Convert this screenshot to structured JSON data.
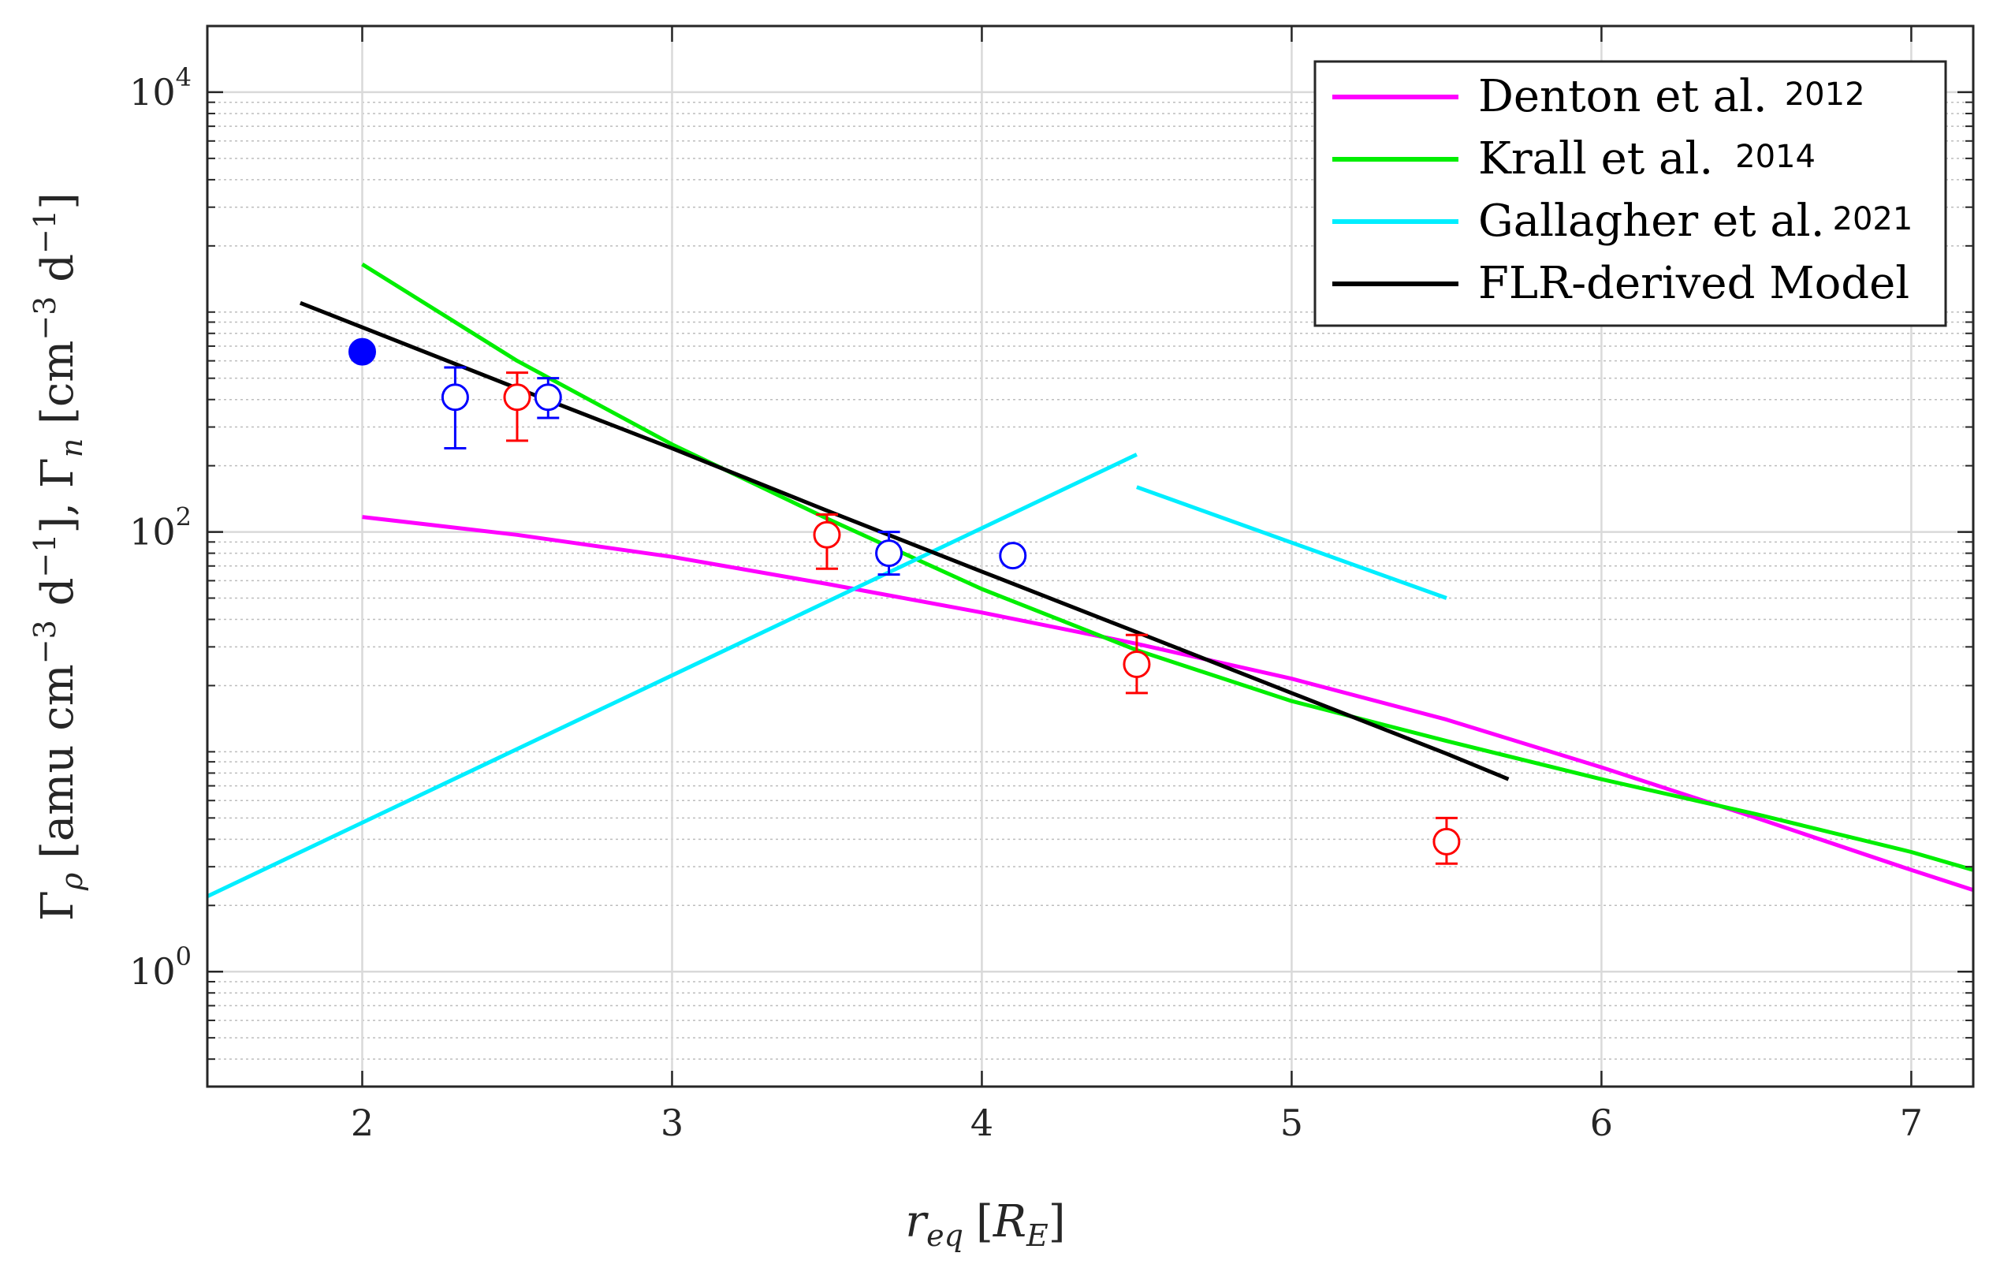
{
  "chart_data": {
    "type": "line",
    "xlabel": "r_eq [R_E]",
    "xlabel_parts": {
      "main": "r",
      "main_sub": "eq",
      "bracket_open": "[",
      "unit": "R",
      "unit_sub": "E",
      "bracket_close": "]"
    },
    "ylabel": "Γ_ρ [amu cm^-3 d^-1], Γ_n [cm^-3 d^-1]",
    "ylabel_parts": {
      "gamma": "Γ",
      "rho": "ρ",
      "unit1_a": " [amu cm",
      "exp": "−3",
      "unit1_b": " d",
      "exp2": "−1",
      "unit1_c": "], ",
      "n": "n",
      "unit2_a": " [cm",
      "unit2_b": " d",
      "unit2_c": "]"
    },
    "xlim": [
      1.5,
      7.2
    ],
    "ylim": [
      0.3,
      20000
    ],
    "yscale": "log",
    "grid": true,
    "legend_position": "top-right",
    "x_ticks": [
      "2",
      "3",
      "4",
      "5",
      "6",
      "7"
    ],
    "y_ticks": [
      {
        "base": "10",
        "exp": "0",
        "value": 1
      },
      {
        "base": "10",
        "exp": "2",
        "value": 100
      },
      {
        "base": "10",
        "exp": "4",
        "value": 10000
      }
    ],
    "series": [
      {
        "name": "Denton et al.",
        "year": "2012",
        "color": "#ff00ff",
        "x": [
          2.0,
          2.5,
          3.0,
          3.5,
          4.0,
          4.5,
          5.0,
          5.5,
          6.0,
          6.5,
          7.0,
          7.2
        ],
        "y": [
          117,
          97,
          77,
          58,
          43,
          31,
          21.5,
          14,
          8.5,
          5,
          2.9,
          2.35
        ]
      },
      {
        "name": "Krall et al.",
        "year": "2014",
        "color": "#00ee00",
        "x": [
          2.0,
          2.5,
          3.0,
          3.5,
          4.0,
          4.5,
          5.0,
          5.5,
          6.0,
          6.5,
          7.0,
          7.2
        ],
        "y": [
          1650,
          600,
          250,
          115,
          55,
          29,
          17,
          11.2,
          7.5,
          5.2,
          3.5,
          2.9
        ]
      },
      {
        "name": "Gallagher et al.",
        "year": "2021",
        "color": "#00eeff",
        "segments": [
          {
            "x": [
              1.5,
              4.5
            ],
            "y": [
              2.2,
              225
            ]
          },
          {
            "x": [
              4.5,
              5.5
            ],
            "y": [
              160,
              50
            ]
          }
        ]
      },
      {
        "name": "FLR-derived Model",
        "year": "",
        "color": "#000000",
        "x": [
          1.8,
          2.5,
          3.0,
          3.5,
          4.0,
          4.5,
          5.0,
          5.5,
          5.7
        ],
        "y": [
          1100,
          450,
          240,
          125,
          66,
          35,
          18.5,
          9.8,
          7.5
        ]
      }
    ],
    "markers": [
      {
        "x": 2.0,
        "y": 660,
        "filled": true,
        "color": "#0000ff"
      },
      {
        "x": 2.3,
        "y": 410,
        "lo": 240,
        "hi": 560,
        "filled": false,
        "color": "#0000ff"
      },
      {
        "x": 2.6,
        "y": 410,
        "lo": 330,
        "hi": 500,
        "filled": false,
        "color": "#0000ff"
      },
      {
        "x": 3.7,
        "y": 80,
        "lo": 64,
        "hi": 100,
        "filled": false,
        "color": "#0000ff"
      },
      {
        "x": 4.1,
        "y": 78,
        "lo": 72,
        "hi": 84,
        "filled": false,
        "color": "#0000ff"
      },
      {
        "x": 2.5,
        "y": 410,
        "lo": 260,
        "hi": 530,
        "filled": false,
        "color": "#ff0000"
      },
      {
        "x": 3.5,
        "y": 97,
        "lo": 68,
        "hi": 120,
        "filled": false,
        "color": "#ff0000"
      },
      {
        "x": 4.5,
        "y": 25,
        "lo": 18.5,
        "hi": 34,
        "filled": false,
        "color": "#ff0000"
      },
      {
        "x": 5.5,
        "y": 3.9,
        "lo": 3.1,
        "hi": 5.0,
        "filled": false,
        "color": "#ff0000"
      }
    ]
  }
}
